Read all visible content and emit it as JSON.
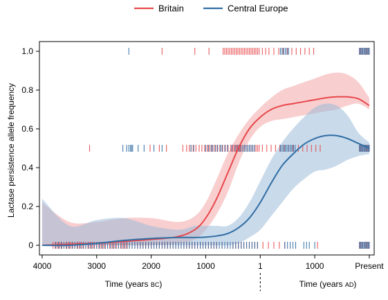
{
  "chart_data": {
    "type": "line",
    "ylabel": "Lactase persistence allele frequency",
    "xlabel_left_prefix": "Time (years ",
    "xlabel_left_era": "BC",
    "xlabel_left_suffix": ")",
    "xlabel_right_prefix": "Time (years ",
    "xlabel_right_era": "AD",
    "xlabel_right_suffix": ")",
    "ylim": [
      -0.05,
      1.05
    ],
    "xlim": [
      -4050,
      2090
    ],
    "x_unit": "year (negative = BC, positive = AD)",
    "x_ticks": [
      {
        "value": -4000,
        "label": "4000"
      },
      {
        "value": -3000,
        "label": "3000"
      },
      {
        "value": -2000,
        "label": "2000"
      },
      {
        "value": -1000,
        "label": "1000"
      },
      {
        "value": 1,
        "label": "1"
      },
      {
        "value": 1000,
        "label": "1000"
      },
      {
        "value": 2000,
        "label": "Present"
      }
    ],
    "y_ticks": [
      {
        "value": 0,
        "label": "0"
      },
      {
        "value": 0.2,
        "label": "0.2"
      },
      {
        "value": 0.4,
        "label": "0.4"
      },
      {
        "value": 0.6,
        "label": "0.6"
      },
      {
        "value": 0.8,
        "label": "0.8"
      },
      {
        "value": 1.0,
        "label": "1.0"
      }
    ],
    "era_divider_x": 1,
    "grid": false,
    "legend_position": "top-center",
    "series": [
      {
        "name": "Britain",
        "color": "#e8474b",
        "band_color": "#f3a6a8",
        "x": [
          -4000,
          -3500,
          -3000,
          -2500,
          -2000,
          -1500,
          -1200,
          -1000,
          -800,
          -600,
          -400,
          -200,
          0,
          200,
          400,
          600,
          800,
          1000,
          1200,
          1400,
          1600,
          1800,
          2000
        ],
        "y": [
          0.0,
          0.005,
          0.01,
          0.02,
          0.03,
          0.045,
          0.08,
          0.14,
          0.24,
          0.37,
          0.5,
          0.6,
          0.66,
          0.7,
          0.72,
          0.73,
          0.74,
          0.75,
          0.76,
          0.765,
          0.765,
          0.755,
          0.72
        ],
        "upper": [
          0.22,
          0.12,
          0.12,
          0.14,
          0.14,
          0.12,
          0.15,
          0.22,
          0.34,
          0.47,
          0.57,
          0.65,
          0.71,
          0.76,
          0.8,
          0.82,
          0.84,
          0.86,
          0.88,
          0.89,
          0.88,
          0.84,
          0.76
        ],
        "lower": [
          0.0,
          0.0,
          0.0,
          0.0,
          0.0,
          0.01,
          0.03,
          0.08,
          0.16,
          0.27,
          0.42,
          0.54,
          0.61,
          0.64,
          0.65,
          0.66,
          0.67,
          0.68,
          0.69,
          0.7,
          0.72,
          0.73,
          0.7
        ],
        "rug": {
          "y0": [
            -3800,
            -3760,
            -3720,
            -3680,
            -3640,
            -3600,
            -3560,
            -3520,
            -3480,
            -3440,
            -3400,
            -3360,
            -3320,
            -3280,
            -3240,
            -3200,
            -3160,
            -3120,
            -3080,
            -3040,
            -3000,
            -2960,
            -2920,
            -2880,
            -2840,
            -2800,
            -2760,
            -2720,
            -2680,
            -2640,
            -2600,
            -2560,
            -2520,
            -2480,
            -2440,
            -2400,
            -2350,
            -2300,
            -2250,
            -2200,
            -2150,
            -2100,
            -2050,
            -2000,
            -1950,
            -1900,
            -1850,
            -1800,
            -1750,
            -1700,
            -1650,
            -1600,
            -1550,
            -1500,
            -1450,
            -1400,
            -1350,
            -1300,
            -1250,
            -1200,
            -1150,
            -1100,
            -1050,
            -1000,
            -950,
            -900,
            -850,
            -800,
            -700,
            -600,
            -500,
            -450,
            -400,
            -350,
            -300,
            -250,
            -200,
            -150,
            -100,
            -50,
            50,
            150,
            250,
            350,
            450,
            1050,
            1820,
            1840,
            1860,
            1880,
            1900,
            1920,
            1940,
            1960,
            1980,
            2000
          ],
          "y05": [
            -3130,
            -2020,
            -1850,
            -1720,
            -1420,
            -1350,
            -1300,
            -1270,
            -1230,
            -1180,
            -1120,
            -1070,
            -1020,
            -970,
            -930,
            -890,
            -840,
            -790,
            -740,
            -690,
            -640,
            -590,
            -540,
            -500,
            -470,
            -440,
            -410,
            -380,
            -350,
            -320,
            -290,
            -260,
            -230,
            -200,
            -170,
            -140,
            -110,
            -80,
            -50,
            -20,
            40,
            120,
            200,
            280,
            360,
            440,
            520,
            600,
            700,
            780,
            860,
            940,
            1020,
            1100,
            1820,
            1840,
            1860,
            1880,
            1900,
            1920,
            1940,
            1960,
            1980,
            2000
          ],
          "y1": [
            -1800,
            -1200,
            -940,
            -680,
            -650,
            -620,
            -590,
            -560,
            -530,
            -500,
            -470,
            -440,
            -410,
            -380,
            -350,
            -320,
            -290,
            -260,
            -230,
            -200,
            -170,
            -140,
            -110,
            -80,
            -50,
            -20,
            40,
            100,
            160,
            250,
            340,
            420,
            500,
            580,
            660,
            740,
            820,
            900,
            980,
            1820,
            1840,
            1860,
            1880,
            1900,
            1920,
            1940,
            1960,
            1980,
            2000
          ]
        }
      },
      {
        "name": "Central Europe",
        "color": "#2e6da4",
        "band_color": "#9dbcd8",
        "x": [
          -4000,
          -3500,
          -3000,
          -2500,
          -2000,
          -1500,
          -1200,
          -1000,
          -800,
          -600,
          -400,
          -200,
          0,
          200,
          400,
          600,
          800,
          1000,
          1200,
          1400,
          1600,
          1800,
          2000
        ],
        "y": [
          0.0,
          0.0,
          0.01,
          0.025,
          0.035,
          0.04,
          0.04,
          0.042,
          0.048,
          0.06,
          0.09,
          0.14,
          0.22,
          0.32,
          0.41,
          0.47,
          0.52,
          0.55,
          0.565,
          0.565,
          0.55,
          0.525,
          0.5
        ],
        "upper": [
          0.24,
          0.1,
          0.13,
          0.14,
          0.1,
          0.08,
          0.1,
          0.1,
          0.1,
          0.1,
          0.14,
          0.22,
          0.33,
          0.44,
          0.53,
          0.6,
          0.66,
          0.71,
          0.73,
          0.72,
          0.67,
          0.58,
          0.53
        ],
        "lower": [
          0.0,
          0.0,
          0.0,
          0.0,
          0.0,
          0.0,
          0.0,
          0.0,
          0.0,
          0.0,
          0.01,
          0.04,
          0.08,
          0.15,
          0.22,
          0.29,
          0.34,
          0.38,
          0.39,
          0.41,
          0.44,
          0.46,
          0.47
        ],
        "rug": {
          "y0": [
            -3750,
            -3700,
            -3650,
            -3600,
            -3550,
            -3500,
            -3450,
            -3400,
            -3350,
            -3300,
            -3250,
            -3200,
            -3150,
            -3100,
            -3050,
            -3000,
            -2950,
            -2900,
            -2850,
            -2800,
            -2750,
            -2700,
            -2650,
            -2600,
            -2550,
            -2500,
            -2450,
            -2400,
            -2350,
            -2300,
            -2250,
            -2200,
            -2150,
            -2100,
            -2050,
            -2000,
            -1950,
            -1900,
            -1850,
            -1800,
            -1750,
            -1700,
            -1650,
            -1600,
            -1550,
            -1500,
            -1450,
            -1400,
            -1350,
            -1300,
            -1250,
            -1200,
            -1150,
            -1100,
            -1050,
            -1000,
            -950,
            -900,
            -850,
            -800,
            -750,
            -700,
            -650,
            -600,
            -550,
            -500,
            -450,
            -400,
            -350,
            -300,
            -250,
            -200,
            -150,
            -100,
            -50,
            450,
            500,
            550,
            600,
            650,
            800,
            850,
            900,
            1000,
            1820,
            1840,
            1860,
            1880,
            1900,
            1920,
            1940,
            1960,
            1980,
            2000
          ],
          "y05": [
            -2520,
            -2450,
            -2410,
            -2380,
            -2360,
            -2340,
            -2240,
            -2130,
            -1950,
            -1800,
            -1270,
            -1220,
            -1000,
            -950,
            -900,
            -870,
            -820,
            -780,
            -730,
            -700,
            -650,
            -600,
            -520,
            -460,
            -420,
            -390,
            -360,
            -320,
            -290,
            -260,
            -230,
            -200,
            -170,
            -140,
            -110,
            370,
            400,
            430,
            460,
            490,
            520,
            550,
            580,
            610,
            640,
            1820,
            1840,
            1860,
            1880,
            1900,
            1920,
            1940,
            1960,
            1980,
            2000
          ],
          "y1": [
            -2410,
            370,
            400,
            430,
            460,
            490,
            520,
            1820,
            1840,
            1860,
            1880,
            1900,
            1920,
            1940,
            1960,
            1980,
            2000
          ]
        }
      }
    ]
  }
}
